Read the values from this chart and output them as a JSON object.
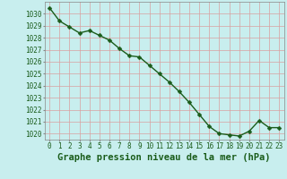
{
  "x": [
    0,
    1,
    2,
    3,
    4,
    5,
    6,
    7,
    8,
    9,
    10,
    11,
    12,
    13,
    14,
    15,
    16,
    17,
    18,
    19,
    20,
    21,
    22,
    23
  ],
  "y": [
    1030.5,
    1029.4,
    1028.9,
    1028.4,
    1028.6,
    1028.2,
    1027.8,
    1027.1,
    1026.5,
    1026.4,
    1025.7,
    1025.0,
    1024.3,
    1023.5,
    1022.6,
    1021.6,
    1020.6,
    1020.0,
    1019.9,
    1019.8,
    1020.2,
    1021.1,
    1020.5,
    1020.5
  ],
  "line_color": "#1a5c1a",
  "marker_color": "#1a5c1a",
  "bg_color": "#c8eeee",
  "grid_color": "#d8a0a0",
  "label_color": "#1a5c1a",
  "xlabel": "Graphe pression niveau de la mer (hPa)",
  "ylim": [
    1019.5,
    1031.0
  ],
  "xlim": [
    -0.5,
    23.5
  ],
  "yticks": [
    1020,
    1021,
    1022,
    1023,
    1024,
    1025,
    1026,
    1027,
    1028,
    1029,
    1030
  ],
  "xticks": [
    0,
    1,
    2,
    3,
    4,
    5,
    6,
    7,
    8,
    9,
    10,
    11,
    12,
    13,
    14,
    15,
    16,
    17,
    18,
    19,
    20,
    21,
    22,
    23
  ],
  "tick_label_fontsize": 5.5,
  "xlabel_fontsize": 7.5,
  "marker_size": 2.5,
  "line_width": 1.0
}
